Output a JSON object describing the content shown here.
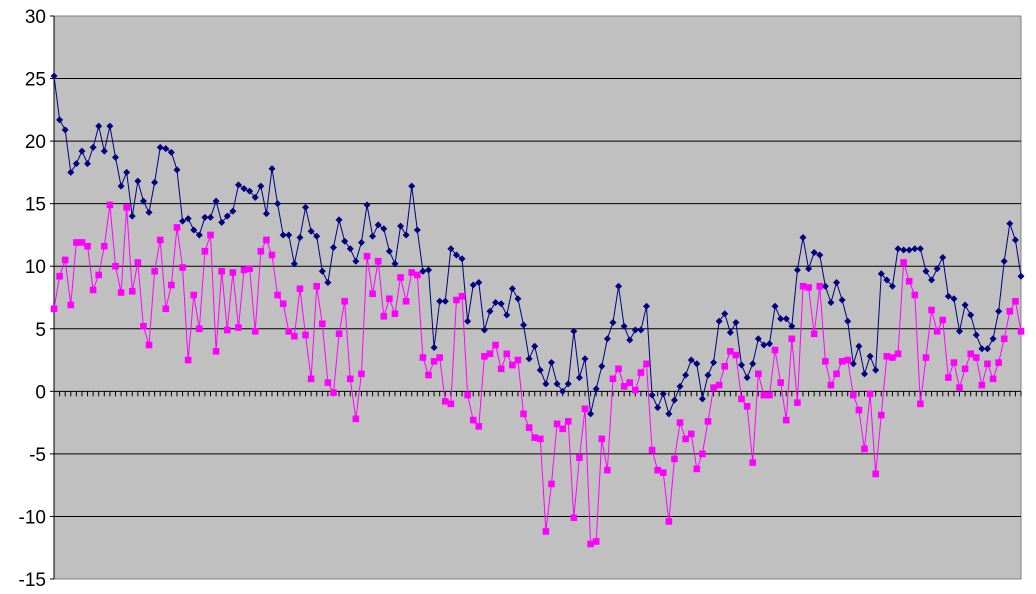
{
  "chart_data": {
    "type": "line",
    "title": "",
    "xlabel": "",
    "ylabel": "",
    "ylim": [
      -15,
      30
    ],
    "y_ticks": [
      "30",
      "25",
      "20",
      "15",
      "10",
      "5",
      "0",
      "-5",
      "-10",
      "-15"
    ],
    "grid": true,
    "plot_background": "#c0c0c0",
    "series": [
      {
        "color": "#000080",
        "marker": "diamond",
        "values": [
          25.2,
          21.7,
          20.9,
          17.5,
          18.2,
          19.2,
          18.2,
          19.5,
          21.2,
          19.2,
          21.2,
          18.7,
          16.4,
          17.5,
          14.0,
          16.8,
          15.2,
          14.3,
          16.7,
          19.5,
          19.4,
          19.1,
          17.7,
          13.6,
          13.8,
          12.9,
          12.5,
          13.9,
          13.9,
          15.2,
          13.5,
          14.0,
          14.4,
          16.5,
          16.2,
          16.0,
          15.5,
          16.4,
          14.2,
          17.8,
          15.0,
          12.5,
          12.5,
          10.2,
          12.3,
          14.7,
          12.8,
          12.4,
          9.6,
          8.7,
          11.5,
          13.7,
          12.0,
          11.4,
          10.4,
          11.9,
          14.9,
          12.4,
          13.3,
          13.0,
          11.2,
          10.2,
          13.2,
          12.5,
          16.4,
          12.9,
          9.6,
          9.7,
          3.5,
          7.2,
          7.2,
          11.4,
          10.9,
          10.6,
          5.6,
          8.5,
          8.7,
          4.9,
          6.4,
          7.1,
          7.0,
          6.1,
          8.2,
          7.4,
          5.3,
          2.6,
          3.6,
          1.7,
          0.6,
          2.3,
          0.6,
          0.0,
          0.6,
          4.8,
          1.1,
          2.6,
          -1.8,
          0.2,
          2.0,
          4.2,
          5.5,
          8.4,
          5.2,
          4.1,
          4.9,
          4.9,
          6.8,
          -0.3,
          -1.3,
          -0.2,
          -1.8,
          -0.7,
          0.4,
          1.3,
          2.5,
          2.2,
          -0.6,
          1.3,
          2.3,
          5.6,
          6.2,
          4.7,
          5.5,
          2.1,
          1.1,
          2.2,
          4.2,
          3.7,
          3.8,
          6.8,
          5.8,
          5.8,
          5.2,
          9.7,
          12.3,
          9.8,
          11.1,
          10.9,
          8.4,
          7.1,
          8.7,
          7.3,
          5.6,
          2.2,
          3.6,
          1.4,
          2.8,
          1.7,
          9.4,
          8.9,
          8.4,
          11.4,
          11.3,
          11.3,
          11.4,
          11.4,
          9.6,
          8.9,
          9.8,
          10.7,
          7.6,
          7.4,
          4.8,
          6.9,
          6.1,
          4.5,
          3.4,
          3.4,
          4.2,
          6.4,
          10.4,
          13.4,
          12.1,
          9.2
        ]
      },
      {
        "color": "#ff00ff",
        "marker": "square",
        "values": [
          6.6,
          9.2,
          10.5,
          6.9,
          11.9,
          11.9,
          11.6,
          8.1,
          9.3,
          11.6,
          14.9,
          10.0,
          7.9,
          14.7,
          8.0,
          10.3,
          5.2,
          3.7,
          9.6,
          12.1,
          6.6,
          8.5,
          13.1,
          9.9,
          2.5,
          7.7,
          5.0,
          11.2,
          12.5,
          3.2,
          9.6,
          4.9,
          9.5,
          5.1,
          9.7,
          9.8,
          4.8,
          11.2,
          12.1,
          10.9,
          7.7,
          7.0,
          4.8,
          4.4,
          8.2,
          4.5,
          1.0,
          8.4,
          5.4,
          0.7,
          -0.1,
          4.6,
          7.2,
          1.0,
          -2.2,
          1.4,
          10.8,
          7.8,
          10.4,
          6.0,
          7.4,
          6.2,
          9.1,
          7.2,
          9.5,
          9.3,
          2.7,
          1.3,
          2.4,
          2.7,
          -0.8,
          -1.0,
          7.3,
          7.6,
          -0.3,
          -2.3,
          -2.8,
          2.8,
          3.0,
          3.7,
          1.8,
          3.0,
          2.1,
          2.5,
          -1.8,
          -2.9,
          -3.7,
          -3.8,
          -11.2,
          -7.4,
          -2.6,
          -3.0,
          -2.4,
          -10.1,
          -5.3,
          -1.4,
          -12.2,
          -12.0,
          -3.8,
          -6.3,
          1.0,
          1.8,
          0.4,
          0.7,
          0.1,
          1.5,
          2.2,
          -4.7,
          -6.3,
          -6.5,
          -10.4,
          -5.4,
          -2.5,
          -3.8,
          -3.4,
          -6.2,
          -5.0,
          -2.4,
          0.3,
          0.5,
          2.0,
          3.2,
          2.9,
          -0.6,
          -1.2,
          -5.7,
          1.4,
          -0.3,
          -0.3,
          3.3,
          0.7,
          -2.3,
          4.2,
          -0.9,
          8.4,
          8.3,
          4.6,
          8.4,
          2.4,
          0.5,
          1.4,
          2.4,
          2.5,
          -0.3,
          -1.5,
          -4.6,
          -0.2,
          -6.6,
          -1.9,
          2.8,
          2.7,
          3.0,
          10.3,
          8.8,
          7.7,
          -1.0,
          2.7,
          6.5,
          4.8,
          5.7,
          1.1,
          2.3,
          0.3,
          1.8,
          3.0,
          2.7,
          0.5,
          2.2,
          1.0,
          2.3,
          4.2,
          6.4,
          7.2,
          4.8
        ]
      }
    ]
  }
}
